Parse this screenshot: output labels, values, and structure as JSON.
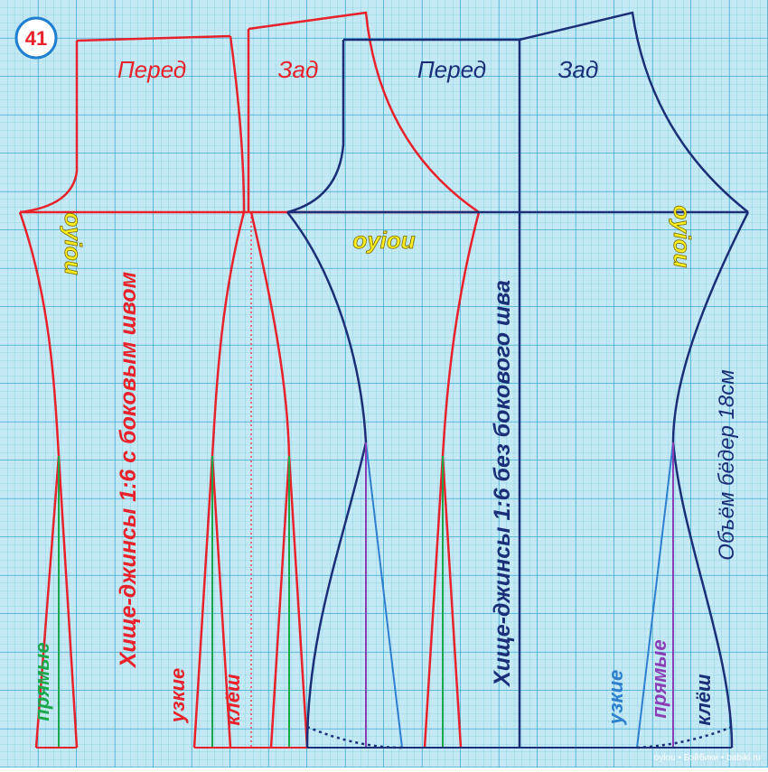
{
  "badge": "41",
  "red_pattern": {
    "front_label": "Перед",
    "back_label": "Зад",
    "title": "Хище-джинсы 1:6  с боковым швом",
    "styles": {
      "straight": "прямые",
      "narrow": "узкие",
      "flared": "клёш"
    }
  },
  "blue_pattern": {
    "front_label": "Перед",
    "back_label": "Зад",
    "title": "Хище-джинсы 1:6  без бокового шва",
    "hip_note": "Объём бёдер 18см",
    "styles": {
      "narrow": "узкие",
      "straight": "прямые",
      "flared": "клёш"
    }
  },
  "logos": [
    "oyiou",
    "oyiou",
    "oyiou"
  ],
  "watermark": "oyiou • Бэйбики • babiki.ru"
}
